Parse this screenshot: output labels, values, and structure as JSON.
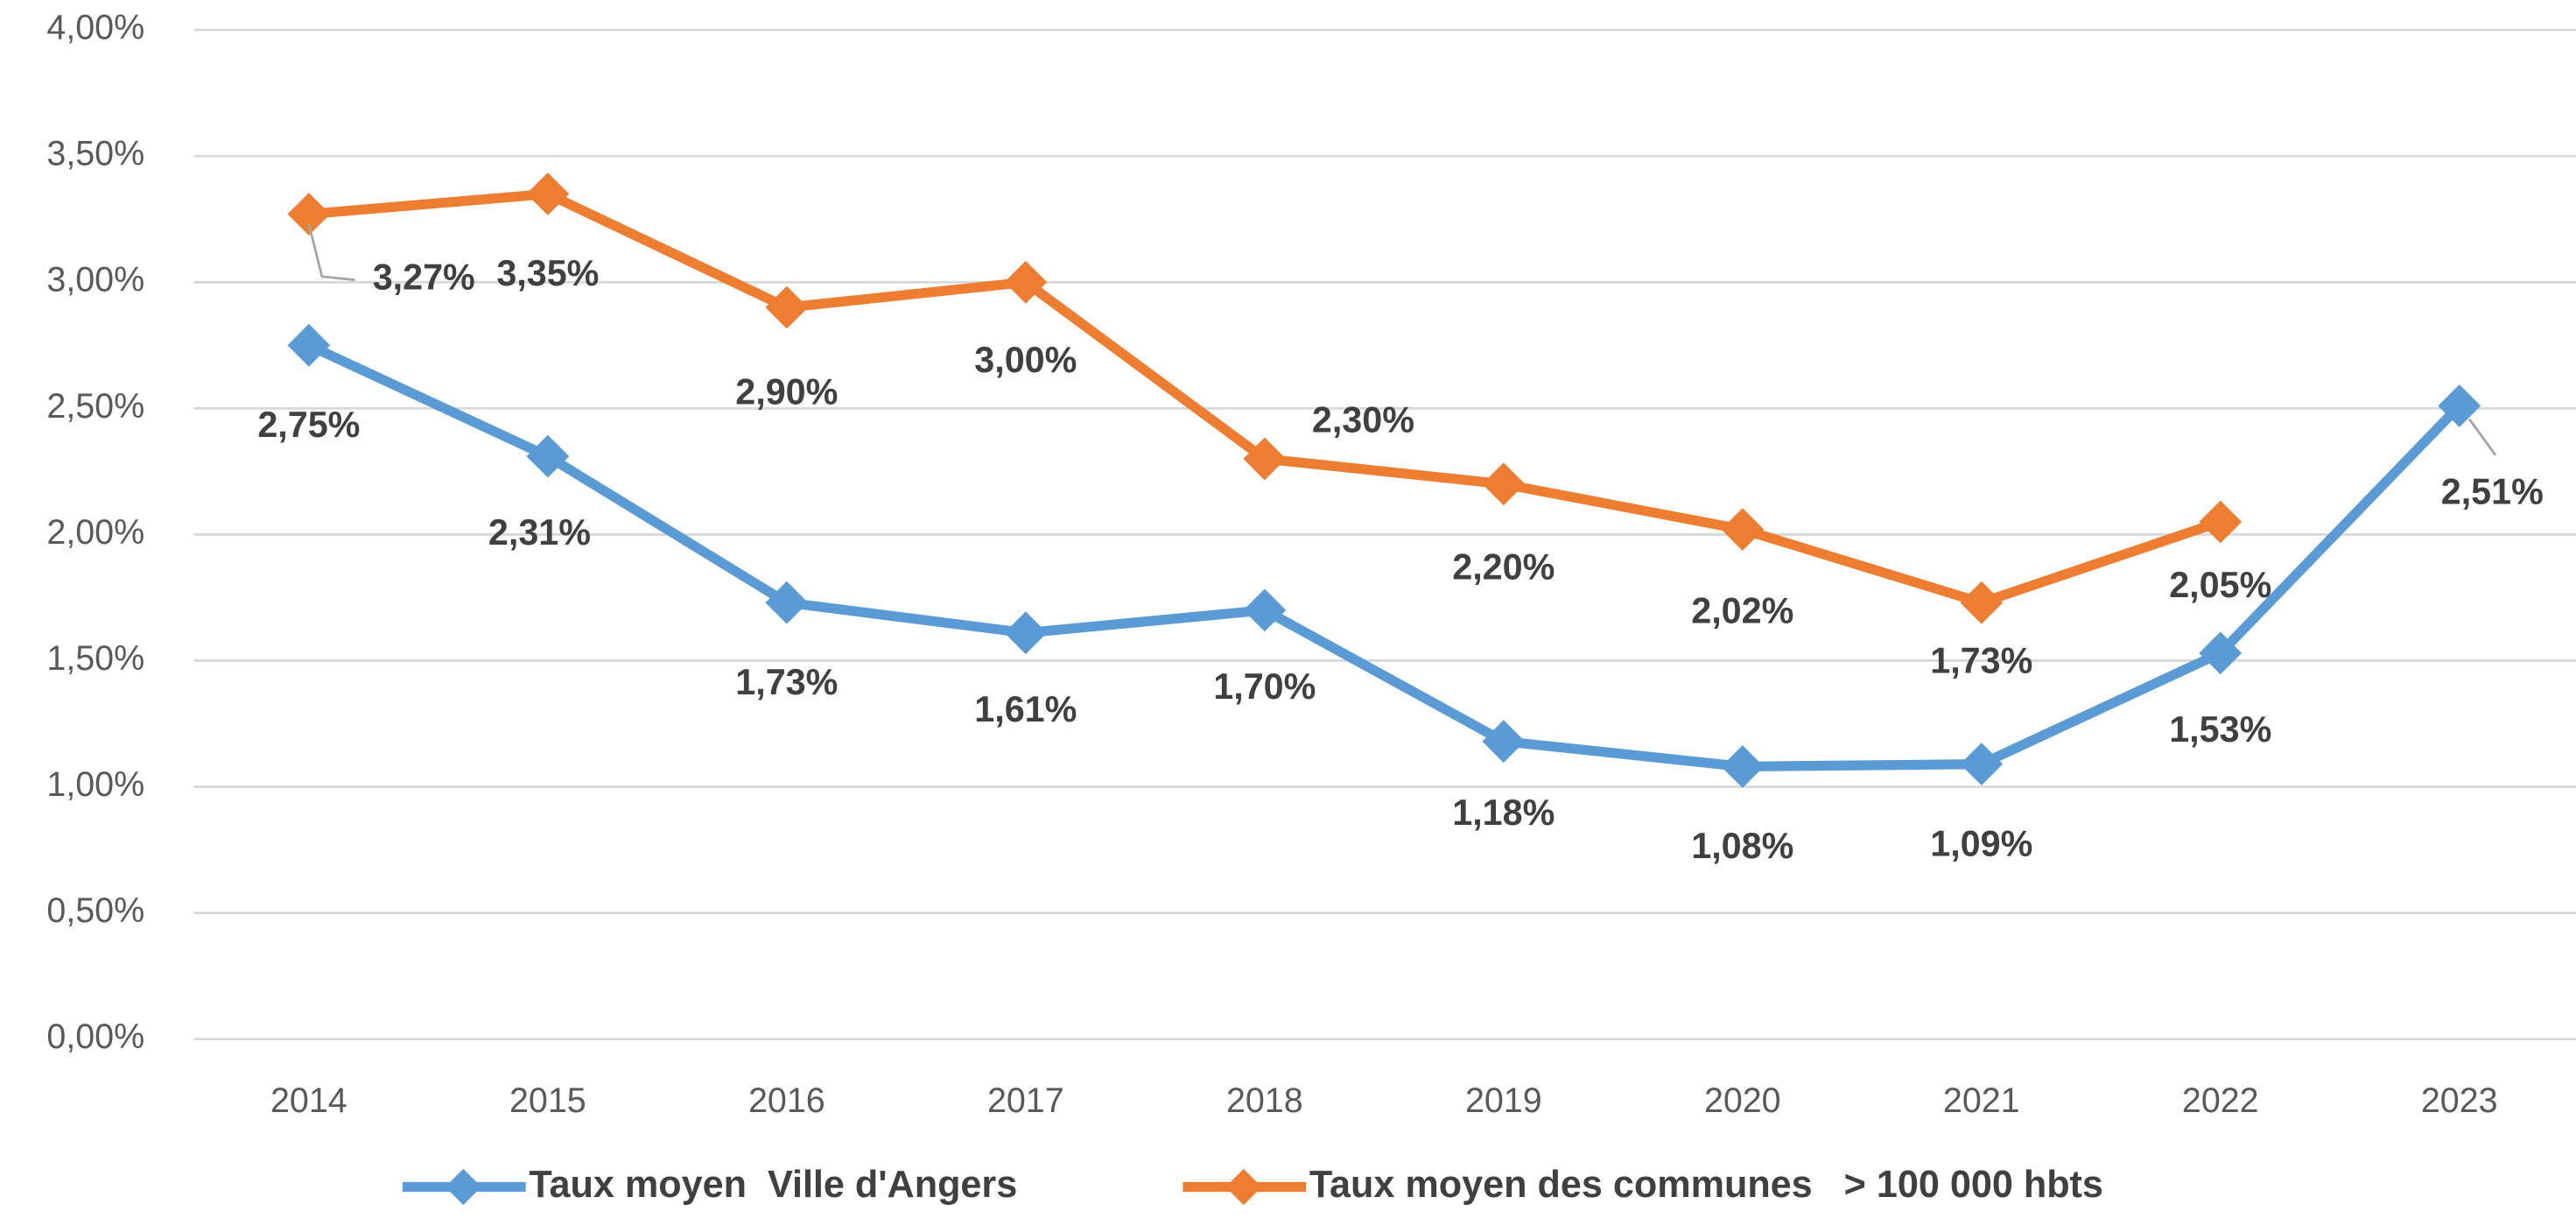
{
  "chart_data": {
    "type": "line",
    "categories": [
      "2014",
      "2015",
      "2016",
      "2017",
      "2018",
      "2019",
      "2020",
      "2021",
      "2022",
      "2023"
    ],
    "series": [
      {
        "name": "Taux moyen  Ville d'Angers",
        "color": "#5b9bd5",
        "values": [
          2.75,
          2.31,
          1.73,
          1.61,
          1.7,
          1.18,
          1.08,
          1.09,
          1.53,
          2.51
        ],
        "value_labels": [
          "2,75%",
          "2,31%",
          "1,73%",
          "1,61%",
          "1,70%",
          "1,18%",
          "1,08%",
          "1,09%",
          "1,53%",
          "2,51%"
        ]
      },
      {
        "name": "Taux moyen des communes   > 100 000 hbts",
        "color": "#ed7d31",
        "values": [
          3.27,
          3.35,
          2.9,
          3.0,
          2.3,
          2.2,
          2.02,
          1.73,
          2.05,
          null
        ],
        "value_labels": [
          "3,27%",
          "3,35%",
          "2,90%",
          "3,00%",
          "2,30%",
          "2,20%",
          "2,02%",
          "1,73%",
          "2,05%",
          null
        ]
      }
    ],
    "ylim": [
      0,
      4
    ],
    "yticks": [
      {
        "value": 0,
        "label": "0,00%"
      },
      {
        "value": 0.5,
        "label": "0,50%"
      },
      {
        "value": 1,
        "label": "1,00%"
      },
      {
        "value": 1.5,
        "label": "1,50%"
      },
      {
        "value": 2,
        "label": "2,00%"
      },
      {
        "value": 2.5,
        "label": "2,50%"
      },
      {
        "value": 3,
        "label": "3,00%"
      },
      {
        "value": 3.5,
        "label": "3,50%"
      },
      {
        "value": 4,
        "label": "4,00%"
      }
    ],
    "grid": true,
    "legend": "bottom"
  }
}
